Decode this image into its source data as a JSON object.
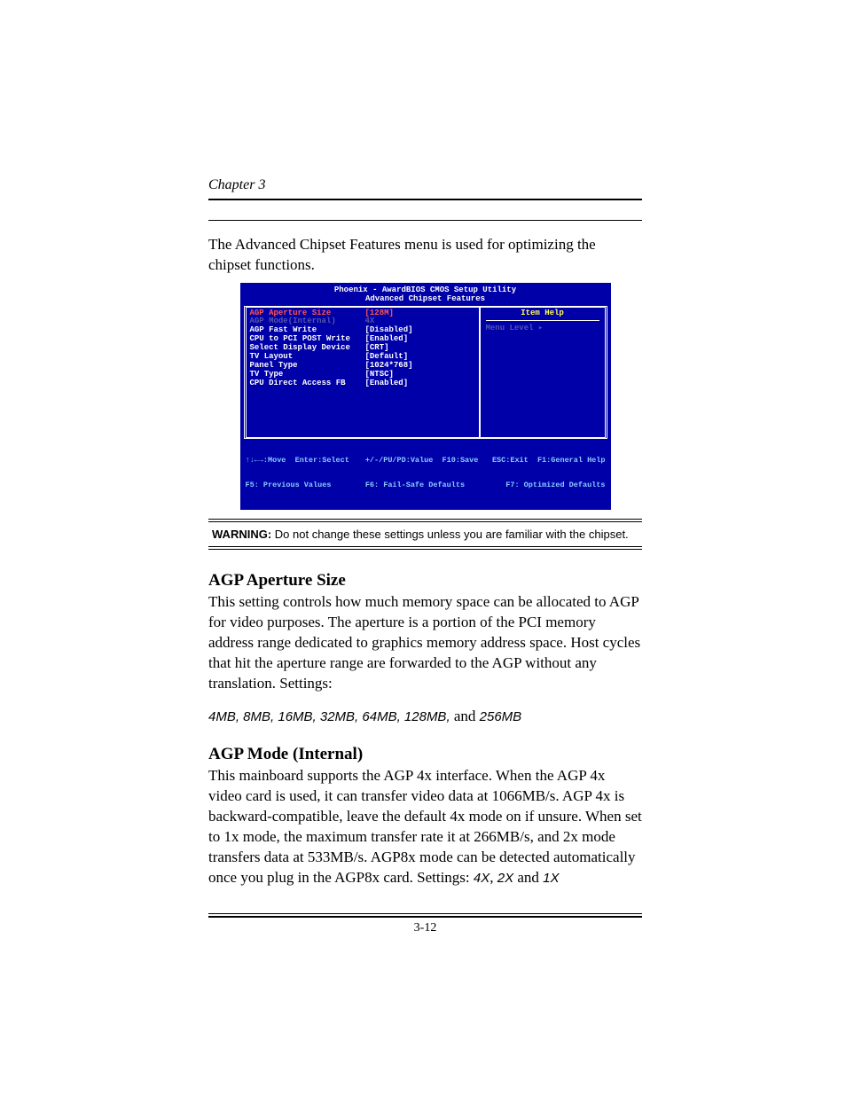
{
  "chapter": "Chapter 3",
  "intro": "The Advanced Chipset Features menu is used for optimizing the chipset functions.",
  "bios": {
    "title_line1": "Phoenix - AwardBIOS CMOS Setup Utility",
    "title_line2": "Advanced Chipset Features",
    "help_title": "Item Help",
    "menu_level": "Menu Level   ▸",
    "rows": [
      {
        "label": "AGP Aperture Size",
        "value": "[128M]",
        "style": "highlight"
      },
      {
        "label": "AGP Mode(Internal)",
        "value": "4X",
        "style": "dim"
      },
      {
        "label": "AGP Fast Write",
        "value": "[Disabled]",
        "style": ""
      },
      {
        "label": "CPU to PCI POST Write",
        "value": "[Enabled]",
        "style": ""
      },
      {
        "label": "Select Display Device",
        "value": "[CRT]",
        "style": ""
      },
      {
        "label": "TV Layout",
        "value": "[Default]",
        "style": ""
      },
      {
        "label": "Panel Type",
        "value": "[1024*768]",
        "style": ""
      },
      {
        "label": "TV Type",
        "value": "[NTSC]",
        "style": ""
      },
      {
        "label": "CPU Direct Access FB",
        "value": "[Enabled]",
        "style": ""
      }
    ],
    "footer_col1a": "↑↓←→:Move  Enter:Select",
    "footer_col1b": "F5: Previous Values",
    "footer_col2a": "+/-/PU/PD:Value  F10:Save",
    "footer_col2b": "F6: Fail-Safe Defaults",
    "footer_col3a": "ESC:Exit  F1:General Help",
    "footer_col3b": "F7: Optimized Defaults"
  },
  "warning_bold": "WARNING:",
  "warning_text": " Do not change these settings unless you are familiar with the chipset.",
  "section1": {
    "heading": "AGP Aperture Size",
    "body": "This setting controls how much memory space can be allocated to AGP for video purposes. The aperture is a portion of the PCI memory address range dedicated to graphics memory address space. Host cycles that hit the aperture range are forwarded to the AGP without any translation. Settings:",
    "settings_italic": "4MB, 8MB, 16MB, 32MB, 64MB, 128MB,",
    "settings_and": " and ",
    "settings_last": "256MB"
  },
  "section2": {
    "heading": "AGP Mode (Internal)",
    "body_pre": "This mainboard supports the AGP 4x interface. When the AGP 4x video card is used, it can transfer video data at 1066MB/s. AGP 4x is backward-compatible, leave the default 4x mode on if unsure. When set to 1x mode, the maximum transfer rate it at 266MB/s, and 2x mode transfers data at 533MB/s. AGP8x mode can be detected automatically once you plug in the AGP8x card. Settings: ",
    "s1": "4X",
    "sep1": ", ",
    "s2": "2X",
    "sep2": " and ",
    "s3": "1X"
  },
  "page_num": "3-12"
}
